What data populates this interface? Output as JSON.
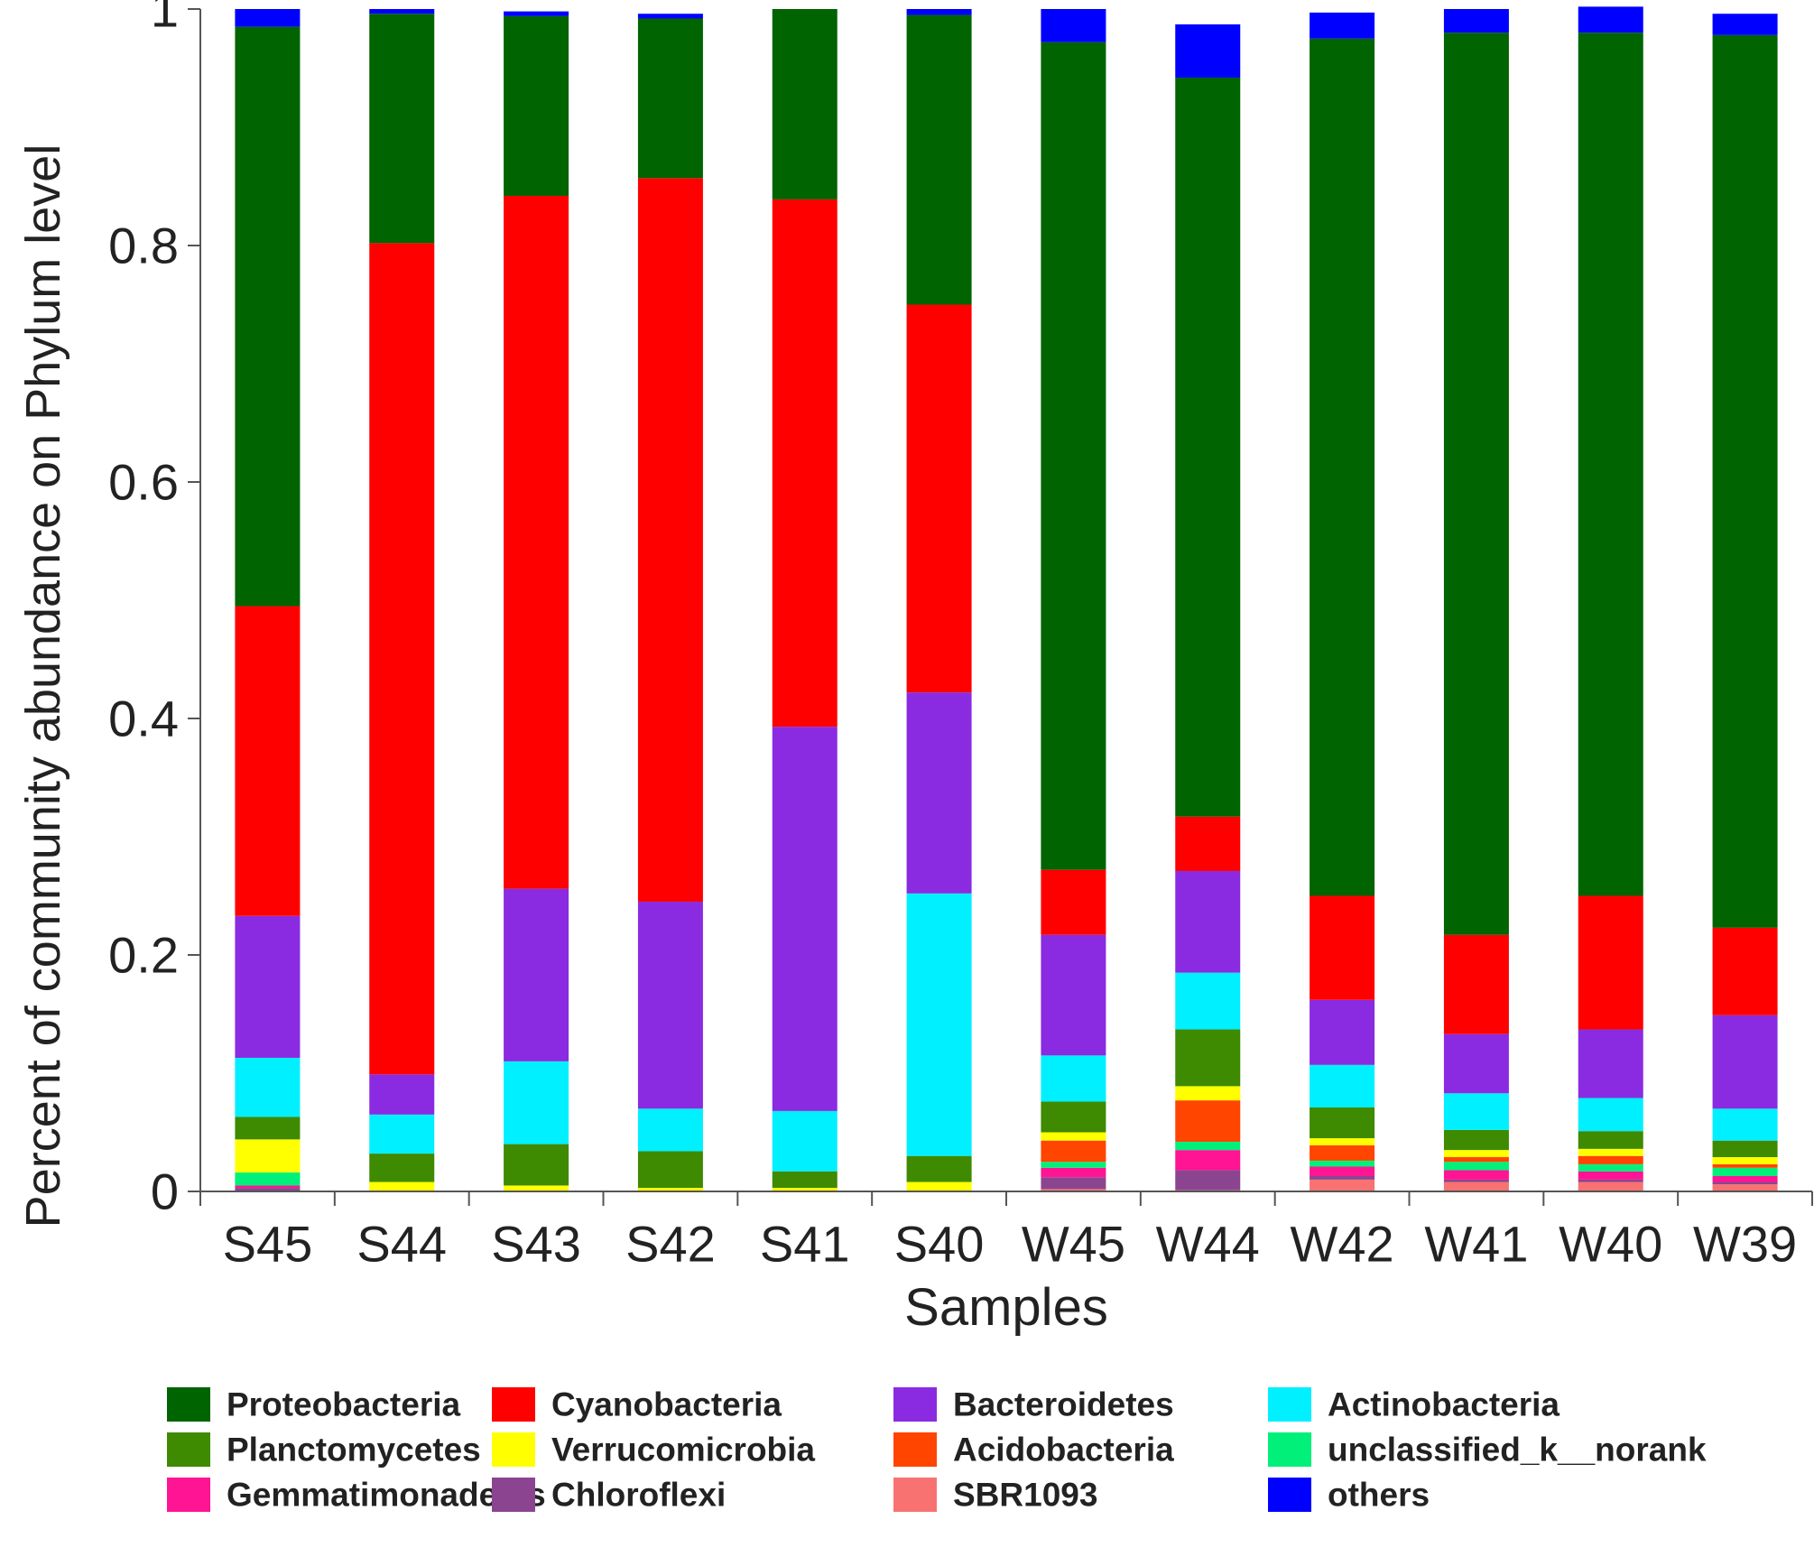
{
  "chart_data": {
    "type": "bar",
    "stacked": true,
    "title": "",
    "xlabel": "Samples",
    "ylabel": "Percent of community abundance on Phylum level",
    "ylim": [
      0,
      1
    ],
    "yticks": [
      "0",
      "0.2",
      "0.4",
      "0.6",
      "0.8",
      "1"
    ],
    "categories": [
      "S45",
      "S44",
      "S43",
      "S42",
      "S41",
      "S40",
      "W45",
      "W44",
      "W42",
      "W41",
      "W40",
      "W39"
    ],
    "series": [
      {
        "name": "SBR1093",
        "color": "#F87272",
        "values": [
          0,
          0,
          0,
          0,
          0,
          0,
          0.002,
          0.001,
          0.01,
          0.008,
          0.008,
          0.006
        ]
      },
      {
        "name": "Chloroflexi",
        "color": "#8B4590",
        "values": [
          0.003,
          0,
          0,
          0,
          0,
          0,
          0.01,
          0.017,
          0.003,
          0.002,
          0.002,
          0.002
        ]
      },
      {
        "name": "Gemmatimonadetes",
        "color": "#FF1493",
        "values": [
          0.002,
          0,
          0,
          0,
          0,
          0,
          0.008,
          0.017,
          0.008,
          0.008,
          0.007,
          0.005
        ]
      },
      {
        "name": "unclassified_k__norank",
        "color": "#00F07A",
        "values": [
          0.011,
          0,
          0,
          0,
          0,
          0,
          0.005,
          0.007,
          0.005,
          0.007,
          0.006,
          0.007
        ]
      },
      {
        "name": "Acidobacteria",
        "color": "#FF4500",
        "values": [
          0,
          0,
          0,
          0,
          0,
          0,
          0.018,
          0.035,
          0.013,
          0.004,
          0.007,
          0.003
        ]
      },
      {
        "name": "Verrucomicrobia",
        "color": "#FFFF00",
        "values": [
          0.028,
          0.008,
          0.005,
          0.003,
          0.003,
          0.008,
          0.007,
          0.012,
          0.006,
          0.006,
          0.006,
          0.006
        ]
      },
      {
        "name": "Planctomycetes",
        "color": "#3E8A00",
        "values": [
          0.019,
          0.024,
          0.035,
          0.031,
          0.014,
          0.022,
          0.026,
          0.048,
          0.026,
          0.017,
          0.015,
          0.014
        ]
      },
      {
        "name": "Actinobacteria",
        "color": "#00F0FF",
        "values": [
          0.05,
          0.033,
          0.07,
          0.036,
          0.051,
          0.222,
          0.039,
          0.048,
          0.036,
          0.031,
          0.028,
          0.027
        ]
      },
      {
        "name": "Bacteroidetes",
        "color": "#8A2BE2",
        "values": [
          0.12,
          0.034,
          0.146,
          0.175,
          0.325,
          0.17,
          0.102,
          0.086,
          0.055,
          0.05,
          0.058,
          0.079
        ]
      },
      {
        "name": "Cyanobacteria",
        "color": "#FF0000",
        "values": [
          0.262,
          0.703,
          0.586,
          0.612,
          0.446,
          0.328,
          0.055,
          0.046,
          0.088,
          0.084,
          0.113,
          0.074
        ]
      },
      {
        "name": "Proteobacteria",
        "color": "#006400",
        "values": [
          0.49,
          0.194,
          0.152,
          0.135,
          0.161,
          0.245,
          0.7,
          0.625,
          0.725,
          0.763,
          0.73,
          0.755
        ]
      },
      {
        "name": "others",
        "color": "#0000FF",
        "values": [
          0.015,
          0.004,
          0.004,
          0.004,
          0,
          0.005,
          0.028,
          0.045,
          0.022,
          0.02,
          0.022,
          0.018
        ]
      }
    ],
    "legend": {
      "position": "bottom",
      "order": [
        "Proteobacteria",
        "Cyanobacteria",
        "Bacteroidetes",
        "Actinobacteria",
        "Planctomycetes",
        "Verrucomicrobia",
        "Acidobacteria",
        "unclassified_k__norank",
        "Gemmatimonadetes",
        "Chloroflexi",
        "SBR1093",
        "others"
      ]
    }
  }
}
